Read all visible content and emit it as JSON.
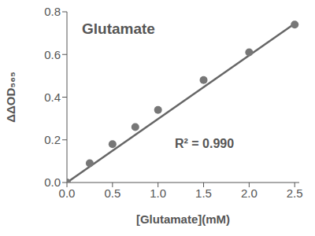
{
  "chart_data": {
    "type": "scatter",
    "title": "Glutamate",
    "x_label": "[Glutamate](mM)",
    "y_label": "ΔΔOD₅₆₅",
    "annotations": [
      "R² = 0.990"
    ],
    "x": [
      0,
      0.25,
      0.5,
      0.75,
      1.0,
      1.5,
      2.0,
      2.5
    ],
    "values": [
      0.0,
      0.09,
      0.18,
      0.26,
      0.34,
      0.48,
      0.61,
      0.74
    ],
    "color": "#777777",
    "marker": "circle",
    "fit_line": {
      "x": [
        0,
        2.5
      ],
      "values": [
        0.0,
        0.745
      ],
      "color": "#666666",
      "line_style": "solid"
    },
    "xlim": [
      0,
      2.55
    ],
    "ylim": [
      0,
      0.8
    ],
    "xticks": [
      {
        "value": 0,
        "label": "0.0"
      },
      0.5,
      {
        "value": 1.0,
        "label": "1.0"
      },
      1.5,
      {
        "value": 2.0,
        "label": "2.0"
      },
      2.5
    ],
    "yticks": [
      {
        "value": 0,
        "label": "0.0"
      },
      0.2,
      0.4,
      0.6,
      0.8
    ],
    "grid": false
  }
}
